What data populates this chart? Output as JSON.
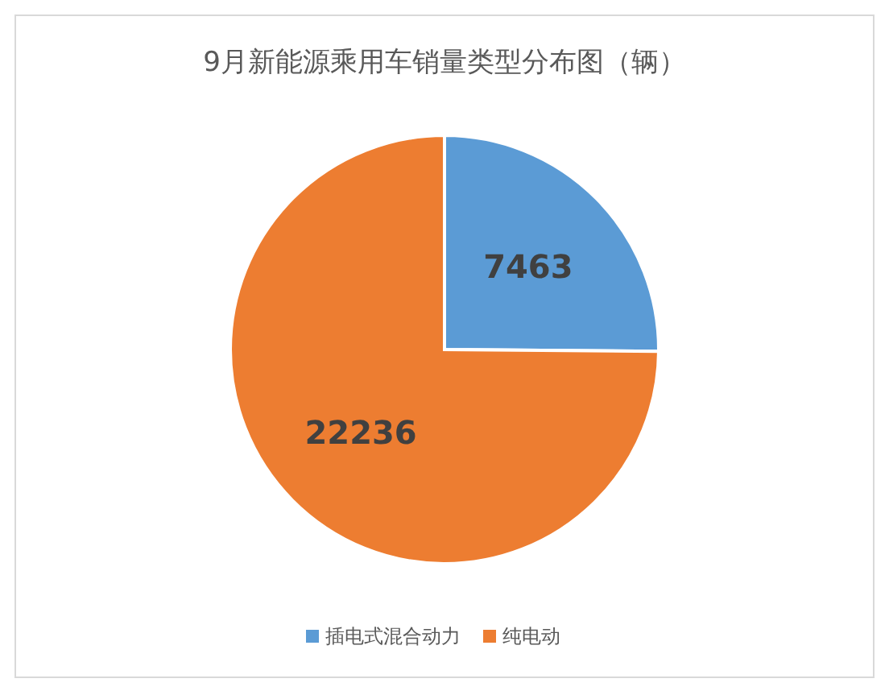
{
  "chart_data": {
    "type": "pie",
    "title": "9月新能源乘用车销量类型分布图（辆）",
    "categories": [
      "插电式混合动力",
      "纯电动"
    ],
    "values": [
      7463,
      22236
    ],
    "colors": [
      "#5b9bd5",
      "#ed7d31"
    ],
    "data_labels": true,
    "legend": "bottom"
  }
}
